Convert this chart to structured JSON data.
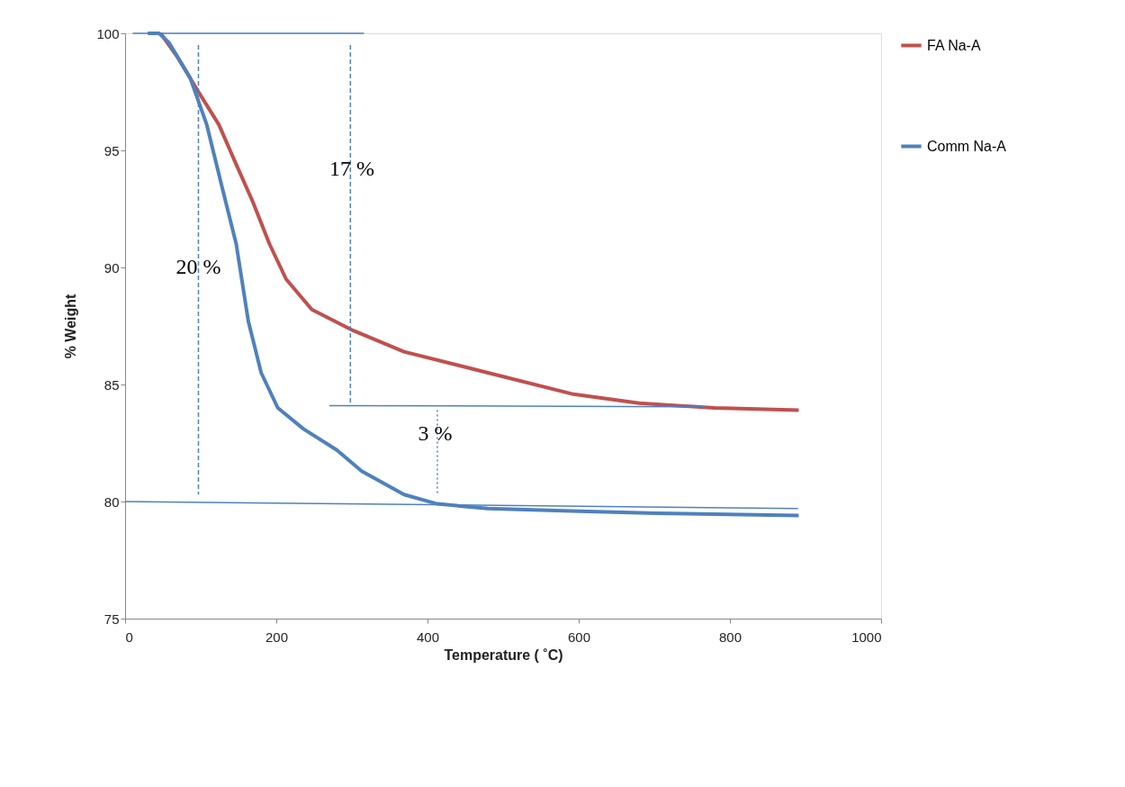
{
  "chart_data": {
    "type": "line",
    "xlabel": "Temperature ( ˚C)",
    "ylabel": "% Weight",
    "xlim": [
      0,
      1000
    ],
    "xticks": [
      0,
      200,
      400,
      600,
      800,
      {
        "value": 1000,
        "label": "1000"
      }
    ],
    "ylim": [
      75,
      100
    ],
    "yticks": [
      75,
      80,
      85,
      90,
      95,
      100
    ],
    "grid": false,
    "legend": "right",
    "marker": "none",
    "series": [
      {
        "name": "FA Na-A",
        "color": "#c0504d",
        "line_style": "solid",
        "x": [
          47,
          69,
          97,
          124,
          147,
          169,
          191,
          213,
          247,
          302,
          369,
          480,
          591,
          680,
          780,
          891
        ],
        "values": [
          100,
          99.0,
          97.5,
          96.1,
          94.4,
          92.8,
          91.0,
          89.5,
          88.2,
          87.3,
          86.4,
          85.5,
          84.6,
          84.2,
          84.0,
          83.9
        ]
      },
      {
        "name": "Comm Na-A",
        "color": "#4f81bd",
        "line_style": "solid",
        "x": [
          30,
          45,
          58,
          86,
          108,
          130,
          147,
          163,
          180,
          202,
          236,
          280,
          313,
          369,
          413,
          480,
          591,
          702,
          891
        ],
        "values": [
          100,
          100,
          99.6,
          98.1,
          96.1,
          93.2,
          91.0,
          87.7,
          85.5,
          84.0,
          83.1,
          82.2,
          81.3,
          80.3,
          79.9,
          79.7,
          79.6,
          79.5,
          79.4
        ]
      },
      {
        "color": "#4f81bd",
        "line_style": "solid",
        "x": [
          10,
          316
        ],
        "values": [
          100,
          100
        ]
      },
      {
        "color": "#4f81bd",
        "line_style": "solid",
        "x": [
          270,
          768
        ],
        "values": [
          84.1,
          84.05
        ]
      },
      {
        "color": "#4f81bd",
        "line_style": "solid",
        "x": [
          0,
          890
        ],
        "values": [
          80,
          79.7
        ]
      },
      {
        "color": "#4f81bd",
        "line_style": "dashed",
        "x": [
          97,
          97
        ],
        "values": [
          99.5,
          80.3
        ]
      },
      {
        "color": "#4f81bd",
        "line_style": "dashed",
        "x": [
          298,
          298
        ],
        "values": [
          99.5,
          84.2
        ]
      },
      {
        "color": "#4f81bd",
        "line_style": "dotted",
        "x": [
          413,
          413
        ],
        "values": [
          83.9,
          80.3
        ]
      }
    ],
    "annotations": [
      {
        "text": "20 %",
        "x": 97,
        "y": 90
      },
      {
        "text": "17 %",
        "x": 300,
        "y": 94.2
      },
      {
        "text": "3 %",
        "x": 410,
        "y": 82.9
      }
    ]
  }
}
